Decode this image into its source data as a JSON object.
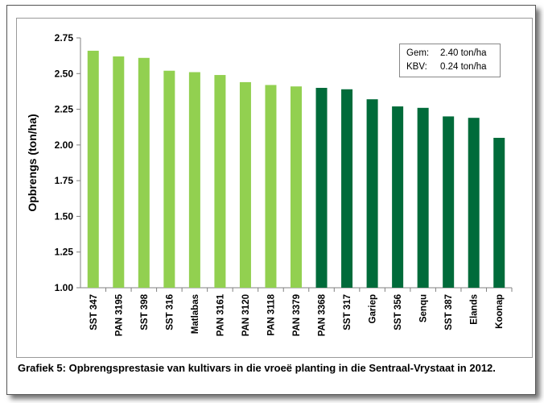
{
  "chart_data": {
    "type": "bar",
    "categories": [
      "SST 347",
      "PAN 3195",
      "SST 398",
      "SST 316",
      "Matlabas",
      "PAN 3161",
      "PAN 3120",
      "PAN 3118",
      "PAN 3379",
      "PAN 3368",
      "SST 317",
      "Gariep",
      "SST 356",
      "Senqu",
      "SST 387",
      "Elands",
      "Koonap"
    ],
    "values": [
      2.66,
      2.62,
      2.61,
      2.52,
      2.51,
      2.49,
      2.44,
      2.42,
      2.41,
      2.4,
      2.39,
      2.32,
      2.27,
      2.26,
      2.2,
      2.19,
      2.05
    ],
    "bar_colors": [
      "#92d050",
      "#92d050",
      "#92d050",
      "#92d050",
      "#92d050",
      "#92d050",
      "#92d050",
      "#92d050",
      "#92d050",
      "#006b3a",
      "#006b3a",
      "#006b3a",
      "#006b3a",
      "#006b3a",
      "#006b3a",
      "#006b3a",
      "#006b3a"
    ],
    "ylabel": "Opbrengs (ton/ha)",
    "ylim": [
      1.0,
      2.75
    ],
    "yticks": [
      "1.00",
      "1.25",
      "1.50",
      "1.75",
      "2.00",
      "2.25",
      "2.50",
      "2.75"
    ],
    "grid": false,
    "legend_placement": "top-right"
  },
  "stats": {
    "mean_label": "Gem:",
    "mean_value": "2.40 ton/ha",
    "cv_label": "KBV:",
    "cv_value": "0.24 ton/ha"
  },
  "caption": "Grafiek 5: Opbrengsprestasie van kultivars in die vroeë planting in die Sentraal-Vrystaat in 2012."
}
